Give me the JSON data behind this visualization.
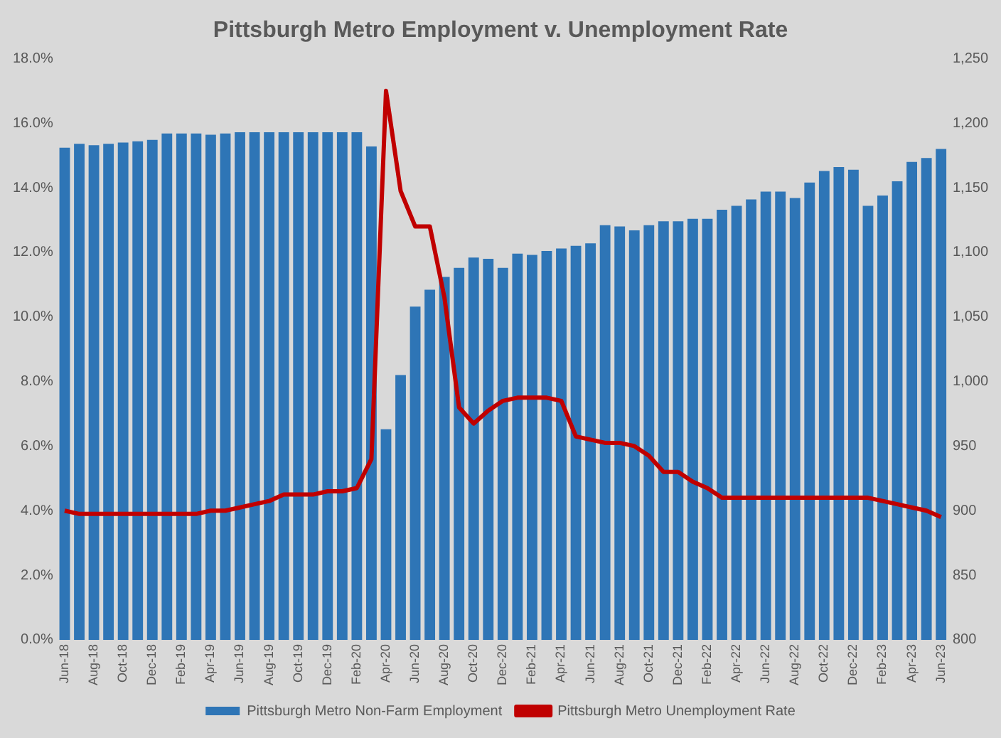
{
  "chart_data": {
    "type": "bar",
    "title": "Pittsburgh Metro Employment v. Unemployment Rate",
    "categories": [
      "Jun-18",
      null,
      "Aug-18",
      null,
      "Oct-18",
      null,
      "Dec-18",
      null,
      "Feb-19",
      null,
      "Apr-19",
      null,
      "Jun-19",
      null,
      "Aug-19",
      null,
      "Oct-19",
      null,
      "Dec-19",
      null,
      "Feb-20",
      null,
      "Apr-20",
      null,
      "Jun-20",
      null,
      "Aug-20",
      null,
      "Oct-20",
      null,
      "Dec-20",
      null,
      "Feb-21",
      null,
      "Apr-21",
      null,
      "Jun-21",
      null,
      "Aug-21",
      null,
      "Oct-21",
      null,
      "Dec-21",
      null,
      "Feb-22",
      null,
      "Apr-22",
      null,
      "Jun-22",
      null,
      "Aug-22",
      null,
      "Oct-22",
      null,
      "Dec-22",
      null,
      "Feb-23",
      null,
      "Apr-23",
      null,
      "Jun-23"
    ],
    "series": [
      {
        "name": "Pittsburgh Metro Non-Farm Employment",
        "axis": "y2",
        "color": "#2e75b6",
        "values": [
          1181,
          1184,
          1183,
          1184,
          1185,
          1186,
          1187,
          1192,
          1192,
          1192,
          1191,
          1192,
          1193,
          1193,
          1193,
          1193,
          1193,
          1193,
          1193,
          1193,
          1193,
          1182,
          963,
          1005,
          1058,
          1071,
          1081,
          1088,
          1096,
          1095,
          1088,
          1099,
          1098,
          1101,
          1103,
          1105,
          1107,
          1121,
          1120,
          1117,
          1121,
          1124,
          1124,
          1126,
          1126,
          1133,
          1136,
          1141,
          1147,
          1147,
          1142,
          1154,
          1163,
          1166,
          1164,
          1136,
          1144,
          1155,
          1170,
          1173,
          1180
        ]
      },
      {
        "name": "Pittsburgh Metro Unemployment Rate",
        "type": "line",
        "axis": "y",
        "color": "#c00000",
        "marker": "none",
        "values": [
          4.0,
          3.9,
          3.9,
          3.9,
          3.9,
          3.9,
          3.9,
          3.9,
          3.9,
          3.9,
          4.0,
          4.0,
          4.1,
          4.2,
          4.3,
          4.5,
          4.5,
          4.5,
          4.6,
          4.6,
          4.7,
          5.6,
          17.0,
          13.9,
          12.8,
          12.8,
          10.6,
          7.2,
          6.7,
          7.1,
          7.4,
          7.5,
          7.5,
          7.5,
          7.4,
          6.3,
          6.2,
          6.1,
          6.1,
          6.0,
          5.7,
          5.2,
          5.2,
          4.9,
          4.7,
          4.4,
          4.4,
          4.4,
          4.4,
          4.4,
          4.4,
          4.4,
          4.4,
          4.4,
          4.4,
          4.4,
          4.3,
          4.2,
          4.1,
          4.0,
          3.8
        ]
      }
    ],
    "ylim": [
      0,
      18
    ],
    "yticks": [
      {
        "value": 0,
        "label": "0.0%"
      },
      {
        "value": 2,
        "label": "2.0%"
      },
      {
        "value": 4,
        "label": "4.0%"
      },
      {
        "value": 6,
        "label": "6.0%"
      },
      {
        "value": 8,
        "label": "8.0%"
      },
      {
        "value": 10,
        "label": "10.0%"
      },
      {
        "value": 12,
        "label": "12.0%"
      },
      {
        "value": 14,
        "label": "14.0%"
      },
      {
        "value": 16,
        "label": "16.0%"
      },
      {
        "value": 18,
        "label": "18.0%"
      }
    ],
    "y2lim": [
      800,
      1250
    ],
    "y2ticks": [
      {
        "value": 800,
        "label": "800"
      },
      {
        "value": 850,
        "label": "850"
      },
      {
        "value": 900,
        "label": "900"
      },
      {
        "value": 950,
        "label": "950"
      },
      {
        "value": 1000,
        "label": "1,000"
      },
      {
        "value": 1050,
        "label": "1,050"
      },
      {
        "value": 1100,
        "label": "1,100"
      },
      {
        "value": 1150,
        "label": "1,150"
      },
      {
        "value": 1200,
        "label": "1,200"
      },
      {
        "value": 1250,
        "label": "1,250"
      }
    ],
    "grid": false,
    "legend": "bottom"
  }
}
